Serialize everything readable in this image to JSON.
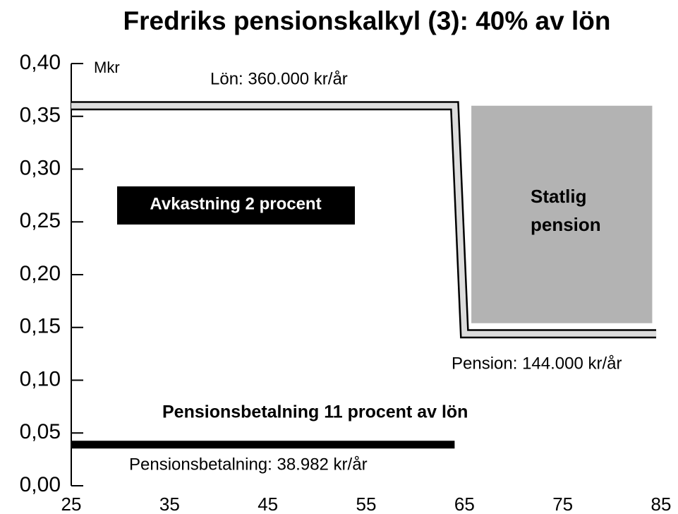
{
  "chart_data": {
    "type": "line",
    "title": "Fredriks pensionskalkyl (3): 40% av lön",
    "y_label": "Mkr",
    "xlim": [
      25,
      85
    ],
    "xticks": [
      25,
      35,
      45,
      55,
      65,
      75,
      85
    ],
    "ylim": [
      0,
      0.4
    ],
    "yticks": [
      {
        "value": 0,
        "label": "0,00"
      },
      {
        "value": 0.05,
        "label": "0,05"
      },
      {
        "value": 0.1,
        "label": "0,10"
      },
      {
        "value": 0.15,
        "label": "0,15"
      },
      {
        "value": 0.2,
        "label": "0,20"
      },
      {
        "value": 0.25,
        "label": "0,25"
      },
      {
        "value": 0.3,
        "label": "0,30"
      },
      {
        "value": 0.35,
        "label": "0,35"
      },
      {
        "value": 0.4,
        "label": "0,40"
      }
    ],
    "series": [
      {
        "style": "outlined",
        "color": "#dddddd",
        "x": [
          25,
          64,
          65,
          84.5
        ],
        "values": [
          0.36,
          0.36,
          0.144,
          0.144
        ]
      },
      {
        "style": "solid",
        "color": "#000000",
        "x": [
          25,
          64
        ],
        "values": [
          0.039,
          0.039
        ]
      },
      {
        "style": "area",
        "color": "#b3b3b3",
        "x": [
          65.7,
          84.1
        ],
        "values": [
          0.36,
          0.36
        ],
        "base": [
          0.154,
          0.154
        ]
      }
    ],
    "annotations": [
      "Lön: 360.000 kr/år",
      "Avkastning 2 procent",
      "Statlig",
      "pension",
      "Pension: 144.000 kr/år",
      "Pensionsbetalning 11 procent av lön",
      "Pensionsbetalning: 38.982 kr/år"
    ]
  }
}
